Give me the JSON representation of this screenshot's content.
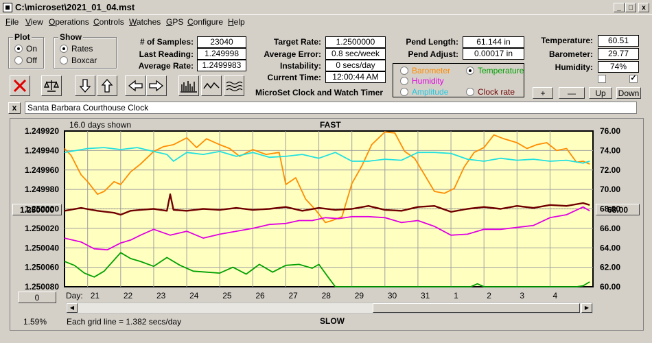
{
  "window": {
    "title": "C:\\microset\\2021_01_04.mst"
  },
  "menu": [
    {
      "label": "File",
      "key": "F",
      "rest": "ile"
    },
    {
      "label": "View",
      "key": "V",
      "rest": "iew"
    },
    {
      "label": "Operations",
      "key": "O",
      "rest": "perations"
    },
    {
      "label": "Controls",
      "key": "C",
      "rest": "ontrols"
    },
    {
      "label": "Watches",
      "key": "W",
      "rest": "atches"
    },
    {
      "label": "GPS",
      "key": "G",
      "rest": "PS"
    },
    {
      "label": "Configure",
      "key": "C",
      "rest": "onfigure"
    },
    {
      "label": "Help",
      "key": "H",
      "rest": "elp"
    }
  ],
  "plot": {
    "title": "Plot",
    "on": "On",
    "off": "Off"
  },
  "show": {
    "title": "Show",
    "rates": "Rates",
    "boxcar": "Boxcar"
  },
  "stats": {
    "samples_label": "# of Samples:",
    "samples": "23040",
    "last_label": "Last Reading:",
    "last": "1.249998",
    "avg_label": "Average Rate:",
    "avg": "1.2499983",
    "target_label": "Target Rate:",
    "target": "1.2500000",
    "err_label": "Average Error:",
    "err": "0.8 sec/week",
    "instab_label": "Instability:",
    "instab": "0 secs/day",
    "time_label": "Current Time:",
    "time": "12:00:44 AM",
    "pendlen_label": "Pend Length:",
    "pendlen": "61.144 in",
    "pendadj_label": "Pend Adjust:",
    "pendadj": "0.00017 in",
    "temp_label": "Temperature:",
    "temp": "60.51",
    "baro_label": "Barometer:",
    "baro": "29.77",
    "hum_label": "Humidity:",
    "hum": "74%"
  },
  "app_caption": "MicroSet Clock and Watch Timer",
  "sensor": {
    "barometer": "Barometer",
    "temperature": "Temperature",
    "humidity": "Humidity",
    "amplitude": "Amplitude",
    "clockrate": "Clock rate"
  },
  "controls": {
    "plus": "+",
    "minus": "—",
    "up": "Up",
    "down": "Down"
  },
  "clock_name": "Santa Barbara Courthouse Clock",
  "chart": {
    "days_shown": "16.0 days shown",
    "fast": "FAST",
    "slow": "SLOW",
    "day_label": "Day:",
    "grid_note": "Each grid line = 1.382 secs/day",
    "percent": "1.59%",
    "left_btn": "1.250000",
    "right_btn": "68.00",
    "bottom_btn": "0"
  },
  "colors": {
    "plot_bg": "#ffffc0",
    "barometer": "#ff8c00",
    "temperature": "#00a000",
    "humidity": "#e000e0",
    "amplitude": "#20e0e0",
    "clockrate": "#700000"
  },
  "chart_data": {
    "type": "line",
    "left_ticks": [
      "1.249920",
      "1.249940",
      "1.249960",
      "1.249980",
      "1.250000",
      "1.250020",
      "1.250040",
      "1.250060",
      "1.250080"
    ],
    "right_ticks": [
      "76.00",
      "74.00",
      "72.00",
      "70.00",
      "68.00",
      "66.00",
      "64.00",
      "62.00",
      "60.00"
    ],
    "x_ticks": [
      "21",
      "22",
      "23",
      "24",
      "25",
      "26",
      "27",
      "28",
      "29",
      "30",
      "31",
      "1",
      "2",
      "3",
      "4"
    ],
    "xlim": [
      20.3,
      36.3
    ],
    "series": [
      {
        "color": "barometer",
        "x": [
          20.3,
          20.5,
          20.8,
          21.0,
          21.3,
          21.5,
          21.8,
          22.0,
          22.3,
          22.6,
          23.0,
          23.3,
          23.6,
          24.0,
          24.3,
          24.6,
          25.0,
          25.3,
          25.6,
          26.0,
          26.4,
          26.8,
          27.0,
          27.3,
          27.6,
          27.9,
          28.2,
          28.4,
          28.7,
          29.0,
          29.3,
          29.6,
          30.0,
          30.3,
          30.6,
          30.9,
          31.2,
          31.5,
          31.8,
          32.1,
          32.4,
          32.7,
          33.0,
          33.3,
          33.6,
          34.0,
          34.3,
          34.6,
          34.9,
          35.2,
          35.5,
          35.8,
          36.0,
          36.2
        ],
        "y": [
          74.2,
          73.5,
          71.5,
          70.8,
          69.5,
          69.8,
          70.8,
          70.5,
          71.8,
          72.6,
          73.9,
          74.4,
          74.6,
          75.3,
          74.3,
          75.2,
          74.6,
          74.2,
          73.4,
          74.1,
          73.6,
          73.8,
          70.5,
          71.2,
          69.0,
          67.9,
          66.6,
          66.8,
          67.2,
          70.6,
          72.4,
          74.6,
          75.9,
          75.8,
          73.9,
          73.2,
          71.5,
          69.8,
          69.6,
          70.1,
          72.3,
          73.8,
          74.3,
          75.6,
          75.2,
          74.8,
          74.2,
          74.6,
          74.8,
          74.0,
          74.2,
          72.8,
          72.9,
          72.6
        ]
      },
      {
        "color": "amplitude",
        "x": [
          20.3,
          21.0,
          21.5,
          22.0,
          22.5,
          23.0,
          23.4,
          23.6,
          24.0,
          24.5,
          25.0,
          25.5,
          26.0,
          26.5,
          27.0,
          27.5,
          28.0,
          28.5,
          29.0,
          29.5,
          30.0,
          30.5,
          31.0,
          31.5,
          32.0,
          32.5,
          33.0,
          33.5,
          34.0,
          34.5,
          35.0,
          35.5,
          36.0,
          36.2
        ],
        "y": [
          73.8,
          74.2,
          74.3,
          74.1,
          74.3,
          73.9,
          73.6,
          72.9,
          73.8,
          73.6,
          73.9,
          73.4,
          73.8,
          73.3,
          73.4,
          73.6,
          73.2,
          73.8,
          72.9,
          72.9,
          73.1,
          73.0,
          73.8,
          73.8,
          73.7,
          73.1,
          72.9,
          73.2,
          73.0,
          73.1,
          72.9,
          73.0,
          72.7,
          72.9
        ]
      },
      {
        "color": "clockrate",
        "x": [
          20.3,
          20.8,
          21.3,
          21.8,
          22.0,
          22.3,
          22.6,
          23.0,
          23.4,
          23.5,
          23.6,
          24.0,
          24.5,
          25.0,
          25.5,
          26.0,
          26.5,
          27.0,
          27.5,
          28.0,
          28.5,
          29.0,
          29.5,
          30.0,
          30.5,
          31.0,
          31.5,
          32.0,
          32.5,
          33.0,
          33.5,
          34.0,
          34.5,
          35.0,
          35.5,
          36.0,
          36.2
        ],
        "y": [
          67.8,
          68.1,
          67.8,
          67.6,
          67.4,
          67.8,
          67.9,
          68.0,
          67.8,
          69.5,
          67.9,
          67.8,
          68.0,
          67.9,
          68.1,
          67.9,
          68.0,
          68.2,
          67.8,
          68.1,
          67.9,
          68.0,
          68.3,
          67.9,
          67.8,
          68.2,
          68.3,
          67.7,
          68.0,
          68.2,
          68.0,
          68.3,
          68.1,
          68.4,
          68.3,
          68.6,
          68.4
        ]
      },
      {
        "color": "humidity",
        "x": [
          20.3,
          20.8,
          21.2,
          21.6,
          22.0,
          22.3,
          22.6,
          23.0,
          23.5,
          24.0,
          24.5,
          25.0,
          25.5,
          26.0,
          26.5,
          27.0,
          27.4,
          27.8,
          28.2,
          28.6,
          29.0,
          29.5,
          30.0,
          30.5,
          31.0,
          31.5,
          32.0,
          32.5,
          33.0,
          33.5,
          34.0,
          34.5,
          35.0,
          35.5,
          36.0,
          36.2
        ],
        "y": [
          65.0,
          64.6,
          63.9,
          63.8,
          64.5,
          64.8,
          65.3,
          65.9,
          65.3,
          65.7,
          65.0,
          65.4,
          65.7,
          66.0,
          66.4,
          66.5,
          66.8,
          66.8,
          67.1,
          67.0,
          67.2,
          67.2,
          67.1,
          66.6,
          66.8,
          66.2,
          65.3,
          65.4,
          65.9,
          65.9,
          66.1,
          66.3,
          67.1,
          67.4,
          68.2,
          67.8
        ]
      },
      {
        "color": "temperature",
        "x": [
          20.3,
          20.6,
          20.9,
          21.2,
          21.5,
          22.0,
          22.3,
          22.6,
          23.0,
          23.4,
          23.8,
          24.2,
          24.6,
          25.0,
          25.4,
          25.8,
          26.2,
          26.6,
          27.0,
          27.4,
          27.8,
          28.0,
          28.3,
          28.5,
          29.0,
          30.0,
          31.0,
          32.0,
          32.6,
          32.8,
          33.0,
          34.0,
          35.0,
          35.8,
          36.0,
          36.2
        ],
        "y": [
          62.6,
          62.2,
          61.4,
          61.0,
          61.6,
          63.5,
          62.9,
          62.6,
          62.1,
          63.0,
          62.2,
          61.6,
          61.5,
          61.4,
          62.0,
          61.3,
          62.3,
          61.5,
          62.2,
          62.3,
          61.9,
          62.3,
          60.9,
          60.0,
          60.0,
          60.0,
          60.0,
          60.0,
          60.0,
          60.3,
          60.0,
          60.0,
          60.0,
          60.0,
          60.1,
          60.5
        ]
      }
    ]
  }
}
